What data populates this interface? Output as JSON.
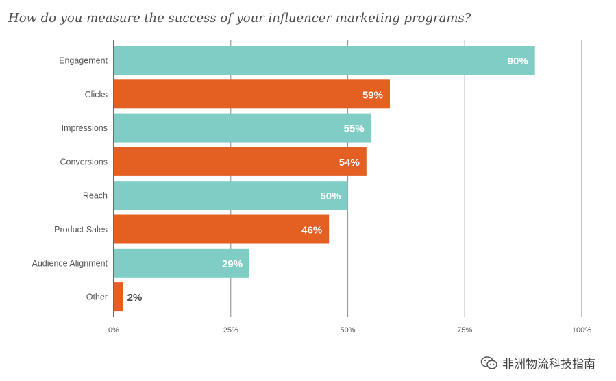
{
  "chart_data": {
    "type": "bar",
    "orientation": "horizontal",
    "title": "How do you measure the success of your influencer marketing programs?",
    "categories": [
      "Engagement",
      "Clicks",
      "Impressions",
      "Conversions",
      "Reach",
      "Product Sales",
      "Audience Alignment",
      "Other"
    ],
    "values": [
      90,
      59,
      55,
      54,
      50,
      46,
      29,
      2
    ],
    "value_labels": [
      "90%",
      "59%",
      "55%",
      "54%",
      "50%",
      "46%",
      "29%",
      "2%"
    ],
    "xticks": [
      "0%",
      "25%",
      "50%",
      "75%",
      "100%"
    ],
    "xlim": [
      0,
      100
    ],
    "grid": true,
    "colors": [
      "#7fcdc5",
      "#e35f22"
    ]
  },
  "watermark": {
    "text": "非洲物流科技指南",
    "icon": "wechat-icon"
  }
}
